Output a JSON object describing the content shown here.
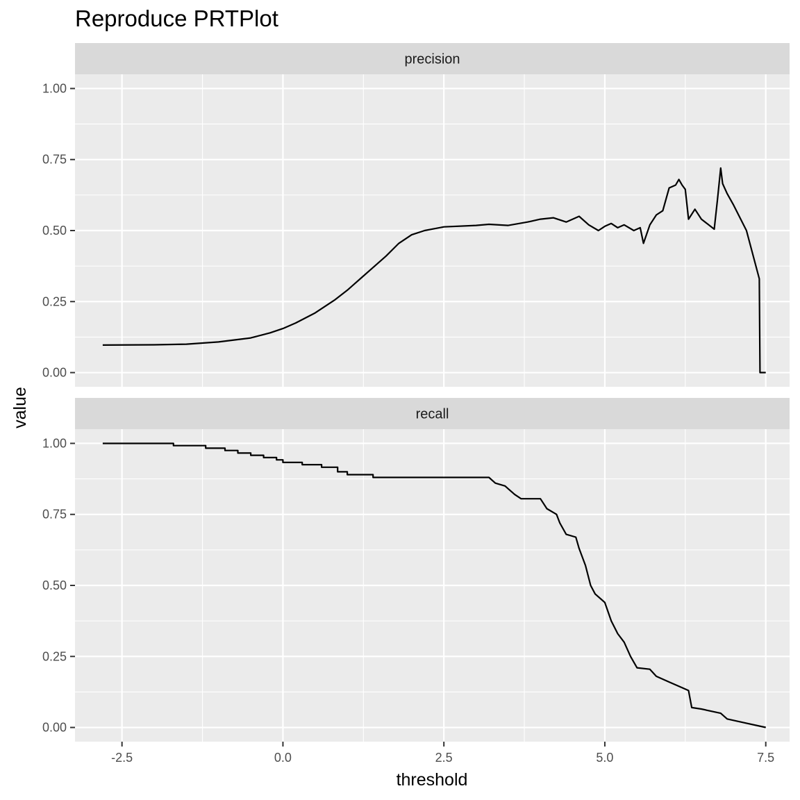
{
  "title": "Reproduce PRTPlot",
  "chart_data": {
    "type": "line",
    "title": "Reproduce PRTPlot",
    "xlabel": "threshold",
    "ylabel": "value",
    "xlim": [
      -3.23,
      7.87
    ],
    "ylim": [
      -0.05,
      1.05
    ],
    "x_ticks": [
      "-2.5",
      "0.0",
      "2.5",
      "5.0",
      "7.5"
    ],
    "y_ticks": [
      "0.00",
      "0.25",
      "0.50",
      "0.75",
      "1.00"
    ],
    "facets": [
      {
        "name": "precision",
        "points": [
          [
            -2.8,
            0.097
          ],
          [
            -2.0,
            0.098
          ],
          [
            -1.5,
            0.1
          ],
          [
            -1.0,
            0.108
          ],
          [
            -0.5,
            0.122
          ],
          [
            -0.2,
            0.14
          ],
          [
            0.0,
            0.155
          ],
          [
            0.2,
            0.175
          ],
          [
            0.5,
            0.21
          ],
          [
            0.8,
            0.255
          ],
          [
            1.0,
            0.29
          ],
          [
            1.2,
            0.33
          ],
          [
            1.4,
            0.37
          ],
          [
            1.6,
            0.41
          ],
          [
            1.8,
            0.455
          ],
          [
            2.0,
            0.485
          ],
          [
            2.2,
            0.5
          ],
          [
            2.5,
            0.513
          ],
          [
            3.0,
            0.518
          ],
          [
            3.2,
            0.522
          ],
          [
            3.5,
            0.518
          ],
          [
            3.8,
            0.53
          ],
          [
            4.0,
            0.54
          ],
          [
            4.2,
            0.545
          ],
          [
            4.4,
            0.53
          ],
          [
            4.6,
            0.55
          ],
          [
            4.75,
            0.52
          ],
          [
            4.9,
            0.5
          ],
          [
            5.0,
            0.515
          ],
          [
            5.1,
            0.525
          ],
          [
            5.2,
            0.51
          ],
          [
            5.3,
            0.52
          ],
          [
            5.45,
            0.5
          ],
          [
            5.55,
            0.51
          ],
          [
            5.6,
            0.455
          ],
          [
            5.7,
            0.52
          ],
          [
            5.8,
            0.555
          ],
          [
            5.9,
            0.57
          ],
          [
            6.0,
            0.65
          ],
          [
            6.1,
            0.66
          ],
          [
            6.15,
            0.68
          ],
          [
            6.2,
            0.66
          ],
          [
            6.25,
            0.645
          ],
          [
            6.3,
            0.54
          ],
          [
            6.4,
            0.575
          ],
          [
            6.5,
            0.54
          ],
          [
            6.7,
            0.505
          ],
          [
            6.75,
            0.61
          ],
          [
            6.8,
            0.72
          ],
          [
            6.83,
            0.665
          ],
          [
            6.9,
            0.63
          ],
          [
            7.0,
            0.59
          ],
          [
            7.2,
            0.5
          ],
          [
            7.4,
            0.33
          ],
          [
            7.41,
            0.0
          ],
          [
            7.5,
            0.0
          ]
        ]
      },
      {
        "name": "recall",
        "points": [
          [
            -2.8,
            1.0
          ],
          [
            -1.7,
            1.0
          ],
          [
            -1.7,
            0.992
          ],
          [
            -1.2,
            0.992
          ],
          [
            -1.2,
            0.983
          ],
          [
            -0.9,
            0.983
          ],
          [
            -0.9,
            0.975
          ],
          [
            -0.7,
            0.975
          ],
          [
            -0.7,
            0.966
          ],
          [
            -0.5,
            0.966
          ],
          [
            -0.5,
            0.958
          ],
          [
            -0.3,
            0.958
          ],
          [
            -0.3,
            0.95
          ],
          [
            -0.1,
            0.95
          ],
          [
            -0.1,
            0.942
          ],
          [
            0.0,
            0.942
          ],
          [
            0.0,
            0.933
          ],
          [
            0.3,
            0.933
          ],
          [
            0.3,
            0.925
          ],
          [
            0.6,
            0.925
          ],
          [
            0.6,
            0.916
          ],
          [
            0.85,
            0.916
          ],
          [
            0.85,
            0.9
          ],
          [
            1.0,
            0.9
          ],
          [
            1.0,
            0.89
          ],
          [
            1.4,
            0.89
          ],
          [
            1.4,
            0.88
          ],
          [
            3.2,
            0.88
          ],
          [
            3.3,
            0.86
          ],
          [
            3.45,
            0.85
          ],
          [
            3.5,
            0.84
          ],
          [
            3.6,
            0.82
          ],
          [
            3.7,
            0.805
          ],
          [
            4.0,
            0.805
          ],
          [
            4.1,
            0.77
          ],
          [
            4.25,
            0.75
          ],
          [
            4.3,
            0.72
          ],
          [
            4.4,
            0.68
          ],
          [
            4.55,
            0.67
          ],
          [
            4.6,
            0.63
          ],
          [
            4.7,
            0.57
          ],
          [
            4.78,
            0.5
          ],
          [
            4.85,
            0.47
          ],
          [
            5.0,
            0.44
          ],
          [
            5.1,
            0.375
          ],
          [
            5.2,
            0.33
          ],
          [
            5.3,
            0.3
          ],
          [
            5.4,
            0.25
          ],
          [
            5.5,
            0.21
          ],
          [
            5.7,
            0.205
          ],
          [
            5.8,
            0.18
          ],
          [
            6.0,
            0.16
          ],
          [
            6.2,
            0.14
          ],
          [
            6.3,
            0.13
          ],
          [
            6.35,
            0.07
          ],
          [
            6.5,
            0.065
          ],
          [
            6.8,
            0.05
          ],
          [
            6.9,
            0.03
          ],
          [
            7.2,
            0.015
          ],
          [
            7.4,
            0.005
          ],
          [
            7.5,
            0.0
          ]
        ]
      }
    ]
  }
}
